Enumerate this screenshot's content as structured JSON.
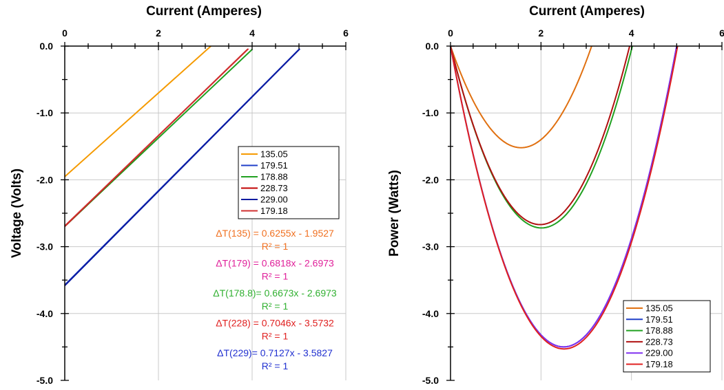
{
  "chart_data": [
    {
      "type": "line",
      "xlabel": "Current (Amperes)",
      "ylabel": "Voltage (Volts)",
      "xlim": [
        0,
        6
      ],
      "ylim": [
        -5,
        0
      ],
      "x_ticks": [
        "0",
        "2",
        "4",
        "6"
      ],
      "y_ticks": [
        "0.0",
        "-1.0",
        "-2.0",
        "-3.0",
        "-4.0",
        "-5.0"
      ],
      "x_axis_position": "top",
      "grid": true,
      "legend": "right",
      "series": [
        {
          "name": "135.05",
          "color": "#f59a00",
          "x": [
            0,
            3.12
          ],
          "y": [
            -1.953,
            0.0
          ]
        },
        {
          "name": "179.51",
          "color": "#1f3fc8",
          "x": [
            0,
            5.0
          ],
          "y": [
            -3.573,
            -0.05
          ]
        },
        {
          "name": "178.88",
          "color": "#20a020",
          "x": [
            0,
            4.0
          ],
          "y": [
            -2.697,
            -0.05
          ]
        },
        {
          "name": "228.73",
          "color": "#c00000",
          "x": [
            0,
            3.9
          ],
          "y": [
            -2.697,
            -0.05
          ]
        },
        {
          "name": "229.00",
          "color": "#0a1aa0",
          "x": [
            0,
            5.02
          ],
          "y": [
            -3.583,
            -0.04
          ]
        },
        {
          "name": "179.18",
          "color": "#d03030",
          "x": [
            0,
            3.92
          ],
          "y": [
            -2.69,
            -0.04
          ]
        }
      ],
      "annotations": [
        {
          "text": "ΔT(135) = 0.6255x - 1.9527",
          "r2": "R² = 1",
          "color": "#f07020"
        },
        {
          "text": "ΔT(179) = 0.6818x - 2.6973",
          "r2": "R² = 1",
          "color": "#e0209a"
        },
        {
          "text": "ΔT(178.8)= 0.6673x - 2.6973",
          "r2": "R² = 1",
          "color": "#30b030"
        },
        {
          "text": "ΔT(228) = 0.7046x - 3.5732",
          "r2": "R² = 1",
          "color": "#e02020"
        },
        {
          "text": "ΔT(229)= 0.7127x - 3.5827",
          "r2": "R² = 1",
          "color": "#2030d0"
        }
      ]
    },
    {
      "type": "line",
      "xlabel": "Current (Amperes)",
      "ylabel": "Power (Watts)",
      "xlim": [
        0,
        6
      ],
      "ylim": [
        -5,
        0
      ],
      "x_ticks": [
        "0",
        "2",
        "4",
        "6"
      ],
      "y_ticks": [
        "0.0",
        "-1.0",
        "-2.0",
        "-3.0",
        "-4.0",
        "-5.0"
      ],
      "x_axis_position": "top",
      "grid": true,
      "legend": "bottom-right",
      "series": [
        {
          "name": "135.05",
          "color": "#e07010",
          "x_max": 3.12,
          "y_min": -1.52
        },
        {
          "name": "179.51",
          "color": "#1f3fc8",
          "x_max": 5.0,
          "y_min": -4.5
        },
        {
          "name": "178.88",
          "color": "#20a020",
          "x_max": 4.02,
          "y_min": -2.72
        },
        {
          "name": "228.73",
          "color": "#b01010",
          "x_max": 3.96,
          "y_min": -2.67
        },
        {
          "name": "229.00",
          "color": "#8030f0",
          "x_max": 5.0,
          "y_min": -4.5
        },
        {
          "name": "179.18",
          "color": "#e02020",
          "x_max": 5.02,
          "y_min": -4.53
        }
      ]
    }
  ]
}
